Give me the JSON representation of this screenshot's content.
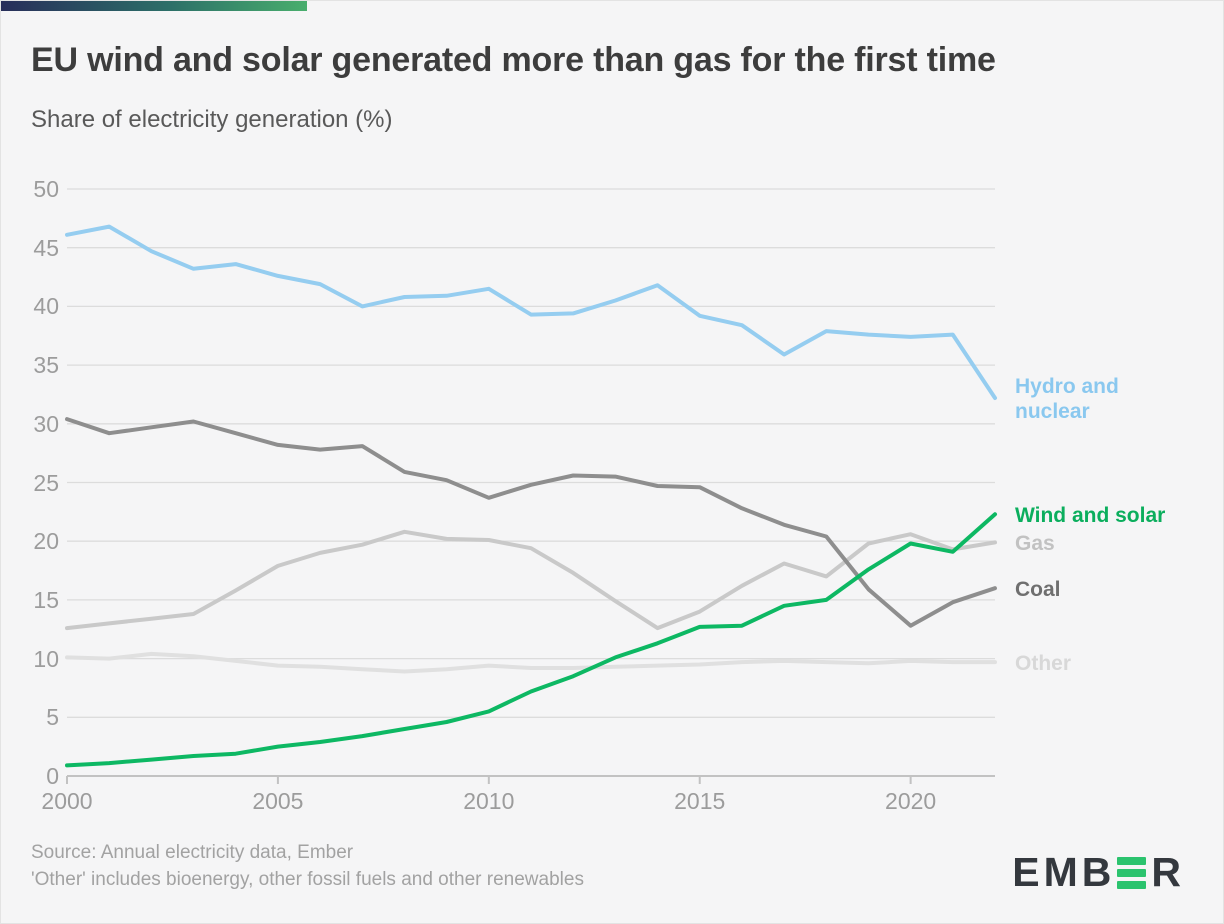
{
  "page": {
    "background": "#f5f5f6",
    "accent_gradient": [
      "#282e5a",
      "#2c6f68",
      "#49ae6d"
    ]
  },
  "header": {
    "title": "EU wind and solar generated more than gas for the first time",
    "subtitle": "Share of electricity generation (%)"
  },
  "chart_data": {
    "type": "line",
    "x": [
      2000,
      2001,
      2002,
      2003,
      2004,
      2005,
      2006,
      2007,
      2008,
      2009,
      2010,
      2011,
      2012,
      2013,
      2014,
      2015,
      2016,
      2017,
      2018,
      2019,
      2020,
      2021,
      2022
    ],
    "x_ticks": [
      2000,
      2005,
      2010,
      2015,
      2020
    ],
    "y_ticks": [
      0,
      5,
      10,
      15,
      20,
      25,
      30,
      35,
      40,
      45,
      50
    ],
    "xlim": [
      2000,
      2022
    ],
    "ylim": [
      0,
      50
    ],
    "grid": "horizontal",
    "legend_position": "right-end-labels",
    "grid_color": "#dcdcdc",
    "axis_color": "#c2c2c2",
    "tick_label_color": "#9c9c9c",
    "series": [
      {
        "name": "Other",
        "label_lines": [
          "Other"
        ],
        "color": "#e0e0e0",
        "label_color": "#d8d8d8",
        "values": [
          10.1,
          10.0,
          10.4,
          10.2,
          9.8,
          9.4,
          9.3,
          9.1,
          8.9,
          9.1,
          9.4,
          9.2,
          9.2,
          9.3,
          9.4,
          9.5,
          9.7,
          9.8,
          9.7,
          9.6,
          9.8,
          9.7,
          9.7
        ]
      },
      {
        "name": "Gas",
        "label_lines": [
          "Gas"
        ],
        "color": "#c9c9c9",
        "label_color": "#c2c2c2",
        "values": [
          12.6,
          13.0,
          13.4,
          13.8,
          15.8,
          17.9,
          19.0,
          19.7,
          20.8,
          20.2,
          20.1,
          19.4,
          17.3,
          14.9,
          12.6,
          14.0,
          16.2,
          18.1,
          17.0,
          19.8,
          20.6,
          19.3,
          19.9
        ]
      },
      {
        "name": "Coal",
        "label_lines": [
          "Coal"
        ],
        "color": "#8e8e8e",
        "label_color": "#6f6f6f",
        "values": [
          30.4,
          29.2,
          29.7,
          30.2,
          29.2,
          28.2,
          27.8,
          28.1,
          25.9,
          25.2,
          23.7,
          24.8,
          25.6,
          25.5,
          24.7,
          24.6,
          22.8,
          21.4,
          20.4,
          15.9,
          12.8,
          14.8,
          16.0
        ]
      },
      {
        "name": "Hydro and nuclear",
        "label_lines": [
          "Hydro and",
          "nuclear"
        ],
        "color": "#95cdf0",
        "label_color": "#8ac8ef",
        "values": [
          46.1,
          46.8,
          44.7,
          43.2,
          43.6,
          42.6,
          41.9,
          40.0,
          40.8,
          40.9,
          41.5,
          39.3,
          39.4,
          40.5,
          41.8,
          39.2,
          38.4,
          35.9,
          37.9,
          37.6,
          37.4,
          37.6,
          32.2
        ]
      },
      {
        "name": "Wind and solar",
        "label_lines": [
          "Wind and solar"
        ],
        "color": "#0db863",
        "label_color": "#0bae5d",
        "values": [
          0.9,
          1.1,
          1.4,
          1.7,
          1.9,
          2.5,
          2.9,
          3.4,
          4.0,
          4.6,
          5.5,
          7.2,
          8.5,
          10.1,
          11.3,
          12.7,
          12.8,
          14.5,
          15.0,
          17.6,
          19.8,
          19.1,
          22.3
        ]
      }
    ]
  },
  "footer": {
    "source_line": "Source: Annual electricity data, Ember",
    "note_line": "'Other' includes bioenergy, other fossil fuels and other renewables"
  },
  "logo": {
    "brand": "EMBER",
    "prefix": "EMB",
    "suffix": "R",
    "green": "#2bc36e"
  }
}
